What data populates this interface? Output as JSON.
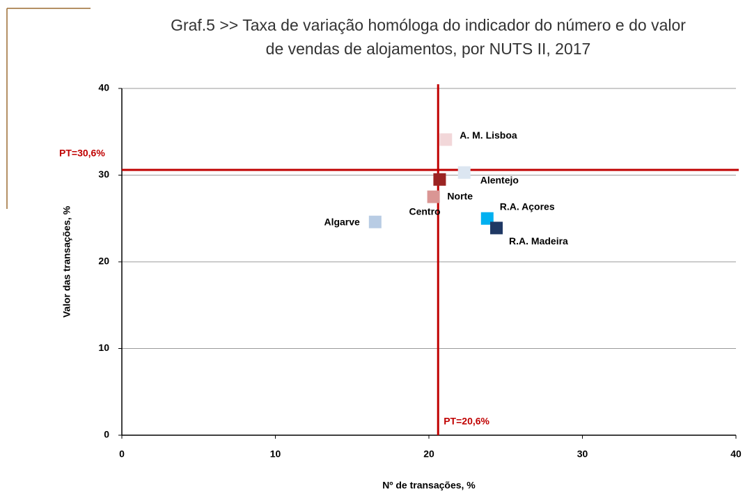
{
  "chart_data": {
    "type": "scatter",
    "title": [
      "Graf.5   >> Taxa de variação homóloga do indicador do número e do valor",
      "de vendas de alojamentos, por NUTS II, 2017"
    ],
    "x_label": "Nº de transações, %",
    "y_label": "Valor das transações, %",
    "xlim": [
      0,
      40
    ],
    "xticks": [
      0,
      10,
      20,
      30,
      40
    ],
    "ylim": [
      0,
      40
    ],
    "yticks": [
      0,
      10,
      20,
      30,
      40
    ],
    "grid": true,
    "series": [
      {
        "name": "A. M. Lisboa",
        "color": "#f2d7d9",
        "x": [
          21.1
        ],
        "values": [
          34.1
        ]
      },
      {
        "name": "Alentejo",
        "color": "#dce6f1",
        "x": [
          22.3
        ],
        "values": [
          30.3
        ]
      },
      {
        "name": "Norte",
        "color": "#9b2423",
        "x": [
          20.7
        ],
        "values": [
          29.5
        ]
      },
      {
        "name": "Centro",
        "color": "#da9694",
        "x": [
          20.3
        ],
        "values": [
          27.5
        ]
      },
      {
        "name": "Algarve",
        "color": "#b8cce4",
        "x": [
          16.5
        ],
        "values": [
          24.6
        ]
      },
      {
        "name": "R.A. Açores",
        "color": "#00b0f0",
        "x": [
          23.8
        ],
        "values": [
          25.0
        ]
      },
      {
        "name": "R.A. Madeira",
        "color": "#1f3864",
        "x": [
          24.4
        ],
        "values": [
          23.9
        ]
      }
    ],
    "reference_x": {
      "value": 20.6,
      "label": "PT=20,6%"
    },
    "reference_y": {
      "value": 30.6,
      "label": "PT=30,6%"
    },
    "reference_color": "#c00000"
  }
}
